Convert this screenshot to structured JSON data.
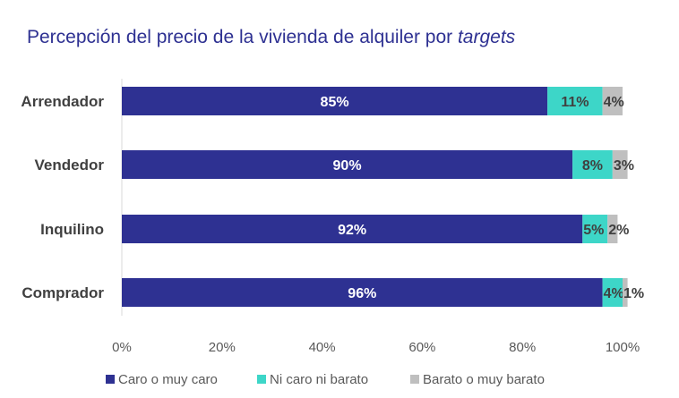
{
  "chart_data": {
    "type": "bar",
    "orientation": "horizontal",
    "stacked": true,
    "title_main": "Percepción del precio de la vivienda de alquiler por ",
    "title_italic": "targets",
    "categories": [
      "Arrendador",
      "Vendedor",
      "Inquilino",
      "Comprador"
    ],
    "series": [
      {
        "name": "Caro o muy caro",
        "color": "#2E3192",
        "values": [
          85,
          90,
          92,
          96
        ],
        "labels": [
          "85%",
          "90%",
          "92%",
          "96%"
        ]
      },
      {
        "name": "Ni caro ni barato",
        "color": "#3DD6C8",
        "values": [
          11,
          8,
          5,
          4
        ],
        "labels": [
          "11%",
          "8%",
          "5%",
          "4%"
        ]
      },
      {
        "name": "Barato o muy barato",
        "color": "#BFBFBF",
        "values": [
          4,
          3,
          2,
          1
        ],
        "labels": [
          "4%",
          "3%",
          "2%",
          "1%"
        ]
      }
    ],
    "xlim": [
      0,
      100
    ],
    "x_ticks": [
      "0%",
      "20%",
      "40%",
      "60%",
      "80%",
      "100%"
    ],
    "x_tick_values": [
      0,
      20,
      40,
      60,
      80,
      100
    ],
    "legend_position": "bottom",
    "grid": false
  }
}
